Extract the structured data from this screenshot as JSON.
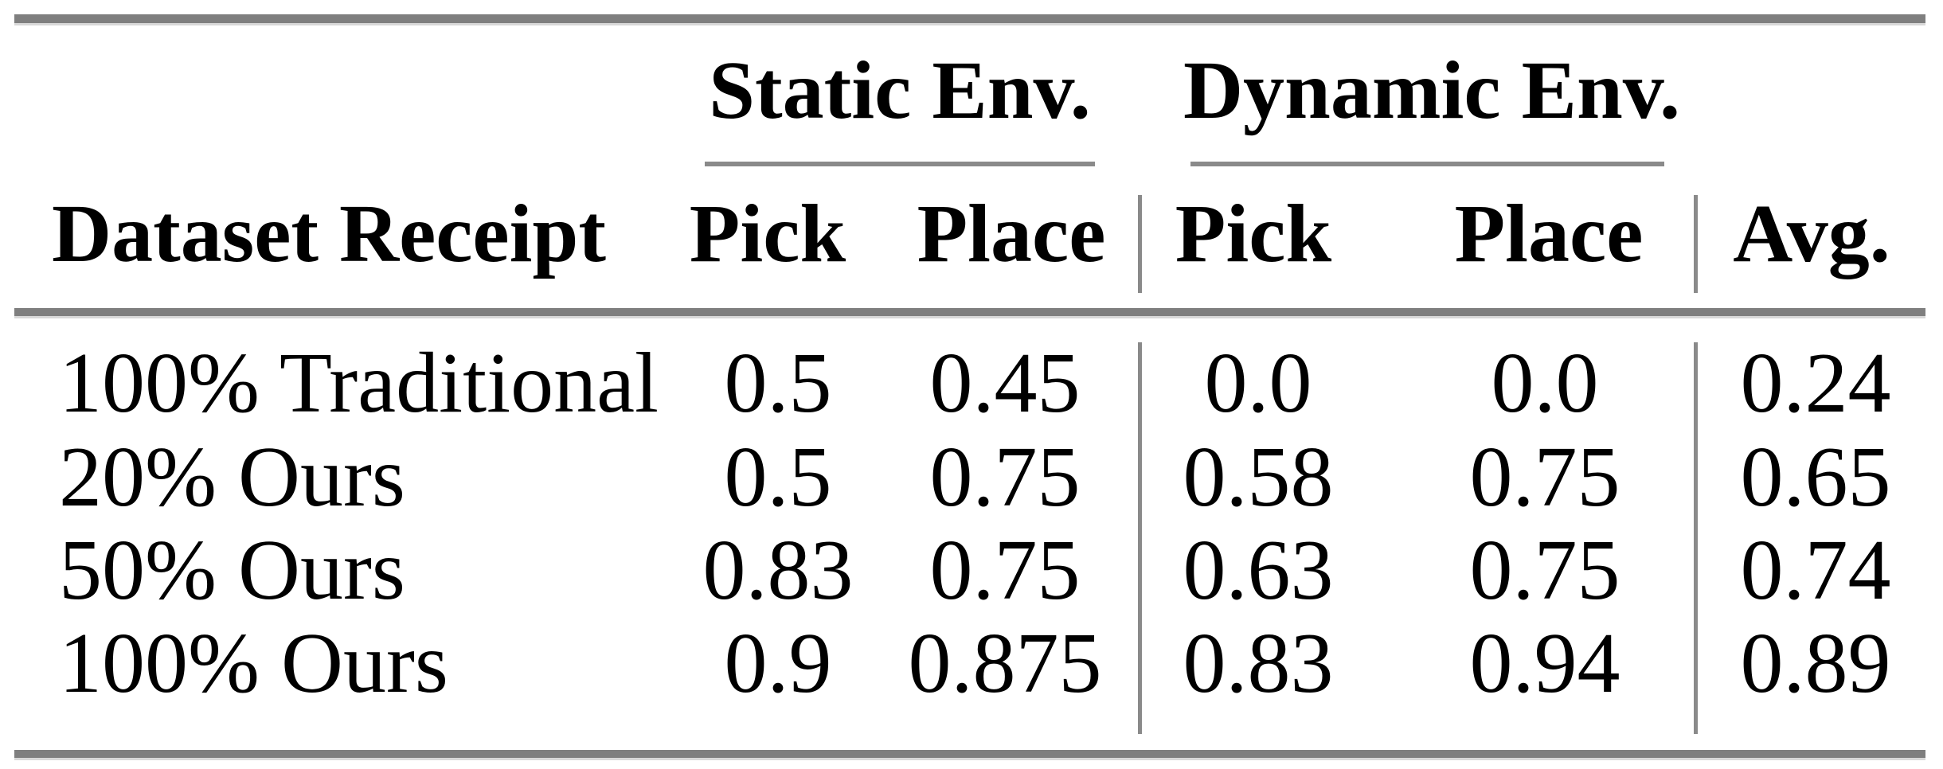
{
  "table": {
    "group_headers": {
      "static": "Static Env.",
      "dynamic": "Dynamic Env."
    },
    "column_headers": {
      "dataset": "Dataset Receipt",
      "static_pick": "Pick",
      "static_place": "Place",
      "dynamic_pick": "Pick",
      "dynamic_place": "Place",
      "avg": "Avg."
    },
    "rows": [
      {
        "label": "100% Traditional",
        "static_pick": "0.5",
        "static_place": "0.45",
        "dynamic_pick": "0.0",
        "dynamic_place": "0.0",
        "avg": "0.24"
      },
      {
        "label": "20% Ours",
        "static_pick": "0.5",
        "static_place": "0.75",
        "dynamic_pick": "0.58",
        "dynamic_place": "0.75",
        "avg": "0.65"
      },
      {
        "label": "50% Ours",
        "static_pick": "0.83",
        "static_place": "0.75",
        "dynamic_pick": "0.63",
        "dynamic_place": "0.75",
        "avg": "0.74"
      },
      {
        "label": "100% Ours",
        "static_pick": "0.9",
        "static_place": "0.875",
        "dynamic_pick": "0.83",
        "dynamic_place": "0.94",
        "avg": "0.89"
      }
    ]
  },
  "colors": {
    "rule_gray": "#7f7f7f",
    "text": "#000000",
    "background": "#ffffff"
  }
}
